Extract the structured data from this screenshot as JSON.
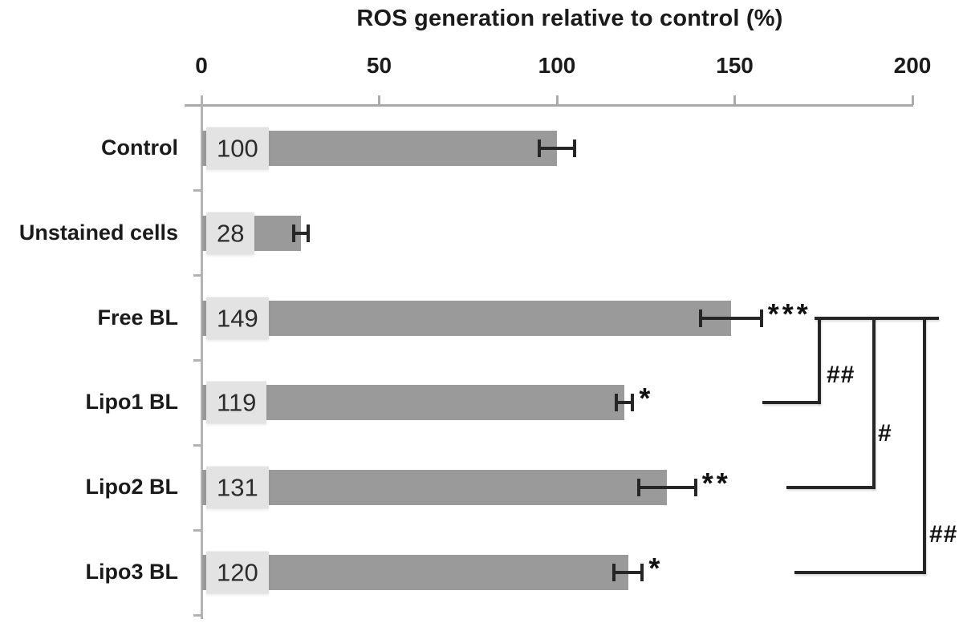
{
  "title": "ROS generation relative to control (%)",
  "chart_data": {
    "type": "bar",
    "orientation": "horizontal",
    "title": "ROS generation relative to control (%)",
    "categories": [
      "Control",
      "Unstained cells",
      "Free BL",
      "Lipo1 BL",
      "Lipo2 BL",
      "Lipo3 BL"
    ],
    "values": [
      100,
      28,
      149,
      119,
      131,
      120
    ],
    "data_labels": [
      "100",
      "28",
      "149",
      "119",
      "131",
      "120"
    ],
    "errors": [
      5,
      2,
      8.5,
      2.3,
      8,
      4
    ],
    "significance": [
      "",
      "",
      "***",
      "*",
      "**",
      "*"
    ],
    "comparisons": [
      {
        "from": "Free BL",
        "to": "Lipo1 BL",
        "label": "##"
      },
      {
        "from": "Free BL",
        "to": "Lipo2 BL",
        "label": "#"
      },
      {
        "from": "Free BL",
        "to": "Lipo3 BL",
        "label": "##"
      }
    ],
    "x_axis": {
      "position": "top",
      "range": [
        0,
        200
      ],
      "ticks": [
        "0",
        "50",
        "100",
        "150",
        "200"
      ]
    },
    "ylabel": "",
    "xlabel": "ROS generation relative to control (%)",
    "grid": "off",
    "legend": "none",
    "colors": {
      "bar": "#9a9a9a",
      "label_box": "#e3e3e3",
      "line": "#262626",
      "axis": "#b3b3b3",
      "text": "#1b1b1b"
    }
  }
}
